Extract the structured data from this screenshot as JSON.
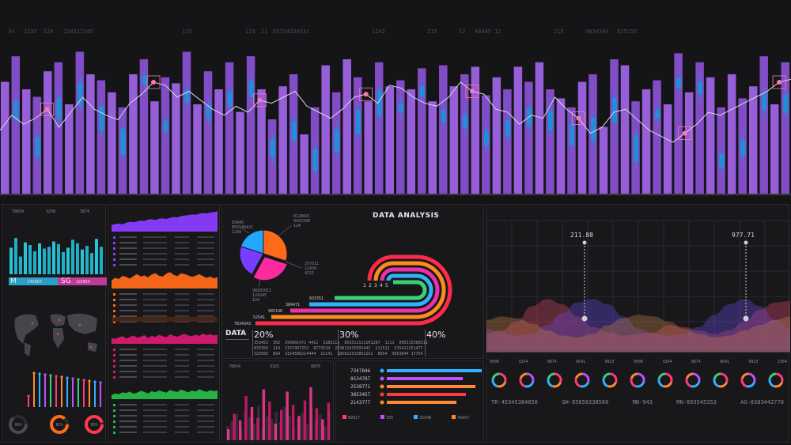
{
  "top_ticker": [
    "34",
    "1235",
    "124",
    "134512345",
    "125",
    "123",
    "21",
    "85354534531",
    "1242",
    "215",
    "12",
    "46845",
    "12",
    "215",
    "9834544",
    "525155"
  ],
  "colors": {
    "purple": "#9b5fe0",
    "blue": "#1e90d8",
    "line": "#d8d8e0",
    "marker": "#ff7aa8"
  },
  "chart_data": [
    {
      "type": "bar",
      "values": [
        75,
        92,
        70,
        65,
        82,
        88,
        60,
        95,
        80,
        76,
        68,
        58,
        80,
        90,
        62,
        78,
        74,
        95,
        60,
        82,
        70,
        88,
        55,
        92,
        70,
        50,
        72,
        80,
        40,
        58,
        86,
        68,
        90,
        78,
        62,
        88,
        72,
        76,
        70,
        84,
        62,
        86,
        72,
        80,
        85,
        66,
        78,
        70,
        85,
        75,
        88,
        70,
        64,
        58,
        75,
        80,
        45,
        90,
        86,
        62,
        70,
        76,
        60,
        94,
        68,
        88,
        78,
        58,
        80,
        64,
        72,
        92,
        60,
        88
      ],
      "overlay_line": [
        48,
        58,
        52,
        56,
        62,
        50,
        60,
        70,
        62,
        58,
        55,
        66,
        72,
        80,
        78,
        70,
        74,
        68,
        62,
        58,
        64,
        60,
        68,
        66,
        70,
        74,
        64,
        60,
        56,
        62,
        70,
        72,
        66,
        78,
        76,
        70,
        66,
        64,
        70,
        80,
        74,
        72,
        62,
        60,
        52,
        58,
        56,
        70,
        62,
        56,
        46,
        50,
        60,
        62,
        55,
        48,
        44,
        40,
        46,
        52,
        60,
        58,
        62,
        66,
        70,
        74,
        80,
        82
      ]
    },
    {
      "type": "bar",
      "values": [
        60,
        82,
        40,
        72,
        66,
        52,
        70,
        58,
        62,
        74,
        68,
        50,
        60,
        78,
        70,
        56,
        64,
        48,
        80,
        62
      ]
    },
    {
      "type": "area",
      "series": [
        {
          "name": "",
          "values": [
            30,
            34,
            36,
            32,
            40,
            44,
            42,
            46,
            50,
            48,
            54,
            56,
            52,
            58,
            60,
            57,
            62,
            66,
            64,
            70,
            72,
            74,
            78,
            76,
            80,
            84,
            82,
            86,
            88,
            92
          ]
        }
      ]
    },
    {
      "type": "area",
      "series": [
        {
          "name": "",
          "values": [
            40,
            52,
            46,
            62,
            56,
            48,
            60,
            70,
            58,
            64,
            54,
            68,
            74,
            62,
            58,
            72,
            80,
            66,
            60,
            74,
            70,
            64,
            56,
            62,
            70,
            60,
            52,
            58,
            50,
            54
          ]
        }
      ]
    },
    {
      "type": "area",
      "series": [
        {
          "name": "",
          "values": [
            30,
            26,
            34,
            40,
            28,
            36,
            44,
            32,
            38,
            46,
            30,
            42,
            36,
            48,
            40,
            34,
            50,
            42,
            38,
            46,
            52,
            44,
            40,
            48,
            42,
            54,
            46,
            50,
            44,
            48
          ]
        }
      ]
    },
    {
      "type": "area",
      "series": [
        {
          "name": "",
          "values": [
            22,
            30,
            26,
            36,
            32,
            40,
            28,
            34,
            44,
            38,
            30,
            42,
            36,
            46,
            40,
            34,
            48,
            42,
            38,
            50,
            44,
            36,
            46,
            40,
            52,
            44,
            38,
            48,
            42,
            46
          ]
        }
      ]
    },
    {
      "type": "pie",
      "values": [
        30,
        28,
        22,
        20
      ],
      "colors": [
        "#ff6a1a",
        "#ff2aa0",
        "#7a3cff",
        "#20a8ff"
      ]
    },
    {
      "type": "bar",
      "values": [
        20,
        48,
        36,
        80,
        60,
        40,
        92,
        70,
        30,
        55,
        88,
        64,
        44,
        72,
        96,
        58,
        38,
        68
      ]
    },
    {
      "type": "bar",
      "values": [
        30,
        40,
        55,
        22,
        62,
        48,
        35,
        72,
        28,
        50,
        44,
        60,
        38,
        70,
        52,
        26,
        46,
        58,
        34,
        66,
        42,
        54,
        30,
        64
      ]
    },
    {
      "type": "area",
      "series": [
        {
          "name": "",
          "values": [
            20,
            24,
            34,
            52,
            60,
            54,
            40,
            28,
            22,
            18,
            20,
            22,
            30,
            28,
            24,
            20,
            24,
            34,
            48,
            56,
            58
          ]
        },
        {
          "name": "",
          "values": [
            26,
            22,
            18,
            20,
            30,
            44,
            56,
            60,
            54,
            40,
            26,
            20,
            18,
            20,
            28,
            42,
            54,
            60,
            52,
            36,
            26
          ]
        },
        {
          "name": "",
          "values": [
            36,
            40,
            38,
            32,
            24,
            18,
            16,
            20,
            30,
            38,
            42,
            40,
            34,
            26,
            20,
            16,
            18,
            24,
            30,
            36,
            40
          ]
        }
      ]
    }
  ],
  "left_panel": {
    "top_labels": [
      "78654",
      "3258",
      "3874"
    ],
    "badge_m": "M",
    "badge_sg": "SG",
    "badge_small_1": "245865",
    "badge_small_2": "125854",
    "gauges": [
      "95%",
      "85%",
      "95%"
    ]
  },
  "list_panel": {
    "rows": [
      "8554558",
      "235554555",
      "21521",
      "855475855"
    ]
  },
  "data_analysis": {
    "title": "DATA ANALYSIS",
    "pie_labels": [
      "85845",
      "855548421",
      "1244",
      "0128821",
      "4422200",
      "124",
      "257511",
      "12434",
      "4222",
      "98201011",
      "124245",
      "124"
    ],
    "scale_labels": [
      "1",
      "2",
      "3",
      "4",
      "5"
    ],
    "bar_values": [
      "833351",
      "384471",
      "985148",
      "52541",
      "7834343"
    ],
    "data_label": "DATA",
    "percents": [
      "20%",
      "30%",
      "40%"
    ],
    "table": [
      [
        "353453",
        "302",
        "395001471 4411",
        "3285111",
        "853511111101287",
        "1111",
        "005315568511"
      ],
      [
        "833359",
        "214",
        "2157497252",
        "8773534",
        "253811015591441",
        "211512",
        "515411251477"
      ],
      [
        "325565",
        "894",
        "3154500214444",
        "21141",
        "185812515891292",
        "8954",
        "9853644 17754"
      ]
    ],
    "hbar_labels": [
      "7347846",
      "8534787",
      "2538771",
      "3853457",
      "2143777"
    ],
    "legend": [
      "89917",
      "355",
      "25548",
      "45857"
    ]
  },
  "bottom_mid": {
    "top_labels": [
      "78654",
      "3325",
      "8876"
    ]
  },
  "wave": {
    "callouts": [
      "211.88",
      "977.71"
    ],
    "donut_labels": [
      "0000",
      "3254",
      "0874",
      "0641",
      "0825",
      "0000",
      "3204",
      "0874",
      "0641",
      "0825",
      "2364"
    ],
    "footer": [
      "TR-45345384856",
      "GH-85658338566",
      "MN-943",
      "MN-893545353",
      "AG-8383442778"
    ]
  }
}
